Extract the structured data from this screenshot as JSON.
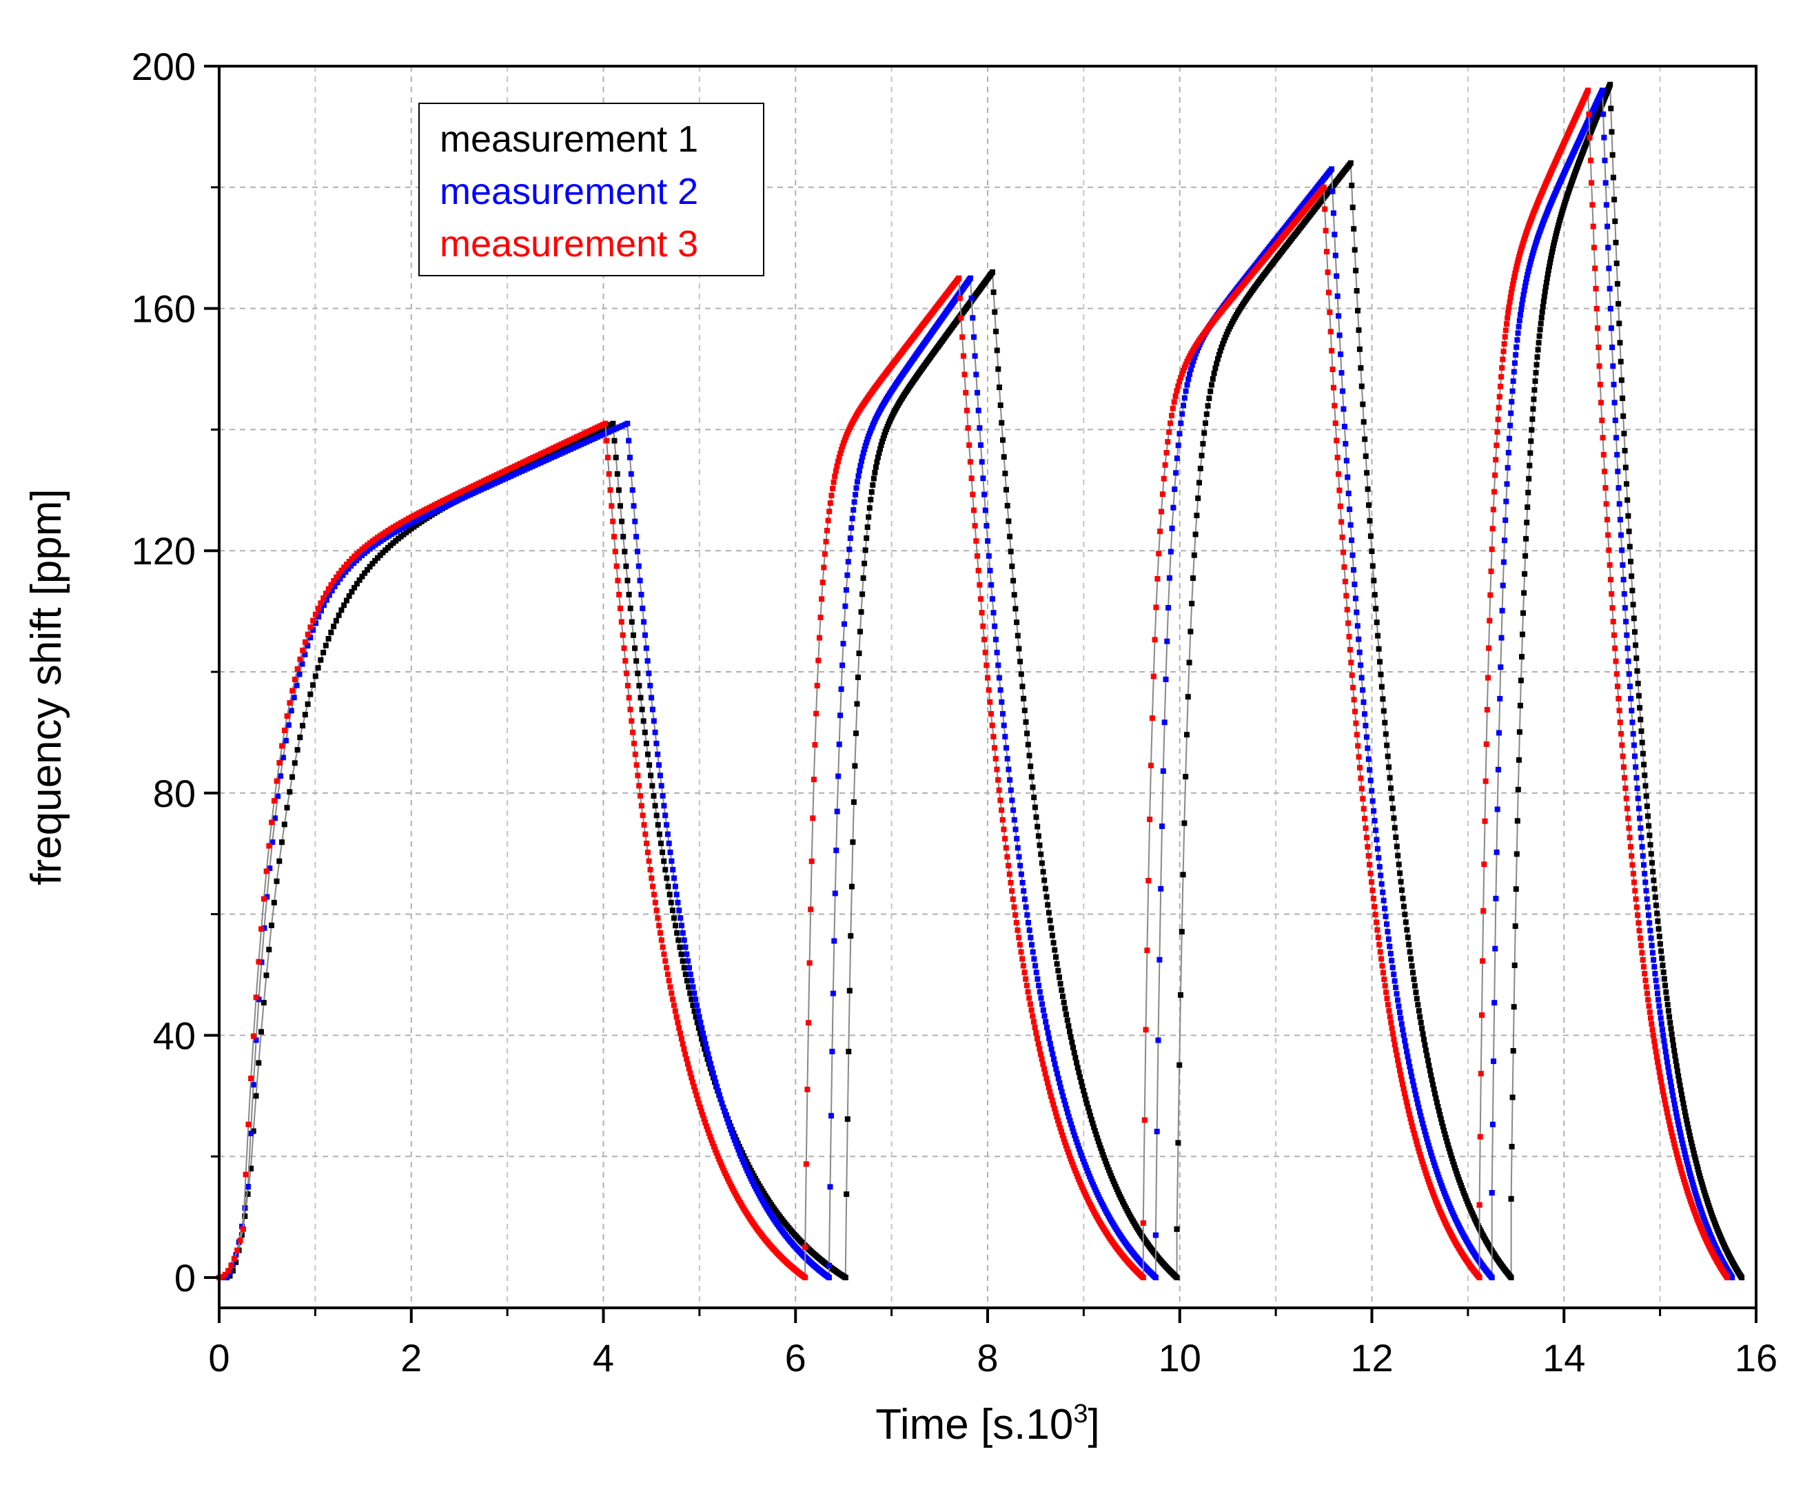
{
  "chart_data": {
    "type": "line",
    "title": "",
    "xlabel": "Time [s.10",
    "xlabel_sup": "3",
    "xlabel_end": "]",
    "ylabel": "frequency shift  [ppm]",
    "xlim": [
      0,
      16
    ],
    "ylim": [
      -5,
      200
    ],
    "x_ticks": [
      "0",
      "2",
      "4",
      "6",
      "8",
      "10",
      "12",
      "14",
      "16"
    ],
    "y_ticks": [
      "0",
      "40",
      "80",
      "120",
      "160",
      "200"
    ],
    "grid": true,
    "legend_position": "top-left",
    "series": [
      {
        "name": "measurement 1",
        "color": "#000000",
        "cycles": [
          {
            "start": 0.33,
            "on_end": 4.1,
            "off_end": 6.52,
            "base": 0,
            "rise_to": 141,
            "early": 18,
            "rise_span": 0.4
          },
          {
            "start": 6.52,
            "on_end": 8.05,
            "off_end": 9.97,
            "base": 0,
            "rise_to": 166,
            "early": 0,
            "rise_span": 0.1
          },
          {
            "start": 9.97,
            "on_end": 11.78,
            "off_end": 13.45,
            "base": 0,
            "rise_to": 184,
            "early": 8,
            "rise_span": 0.12
          },
          {
            "start": 13.45,
            "on_end": 14.48,
            "off_end": 15.85,
            "base": 0,
            "rise_to": 197,
            "early": 13,
            "rise_span": 0.12
          }
        ]
      },
      {
        "name": "measurement 2",
        "color": "#0000ff",
        "cycles": [
          {
            "start": 0.3,
            "on_end": 4.25,
            "off_end": 6.35,
            "base": 0,
            "rise_to": 141,
            "early": 15,
            "rise_span": 0.3
          },
          {
            "start": 6.35,
            "on_end": 7.82,
            "off_end": 9.75,
            "base": 0,
            "rise_to": 165,
            "early": 2,
            "rise_span": 0.1
          },
          {
            "start": 9.75,
            "on_end": 11.58,
            "off_end": 13.25,
            "base": 0,
            "rise_to": 183,
            "early": 7,
            "rise_span": 0.1
          },
          {
            "start": 13.25,
            "on_end": 14.4,
            "off_end": 15.75,
            "base": 0,
            "rise_to": 196,
            "early": 14,
            "rise_span": 0.1
          }
        ]
      },
      {
        "name": "measurement 3",
        "color": "#ff0000",
        "cycles": [
          {
            "start": 0.25,
            "on_end": 4.02,
            "off_end": 6.1,
            "base": 0,
            "rise_to": 141,
            "early": 8,
            "rise_span": 0.3
          },
          {
            "start": 6.1,
            "on_end": 7.7,
            "off_end": 9.62,
            "base": 0,
            "rise_to": 165,
            "early": 5,
            "rise_span": 0.1
          },
          {
            "start": 9.62,
            "on_end": 11.5,
            "off_end": 13.12,
            "base": 0,
            "rise_to": 180,
            "early": 9,
            "rise_span": 0.1
          },
          {
            "start": 13.12,
            "on_end": 14.25,
            "off_end": 15.7,
            "base": 0,
            "rise_to": 196,
            "early": 12,
            "rise_span": 0.1
          }
        ]
      }
    ]
  }
}
